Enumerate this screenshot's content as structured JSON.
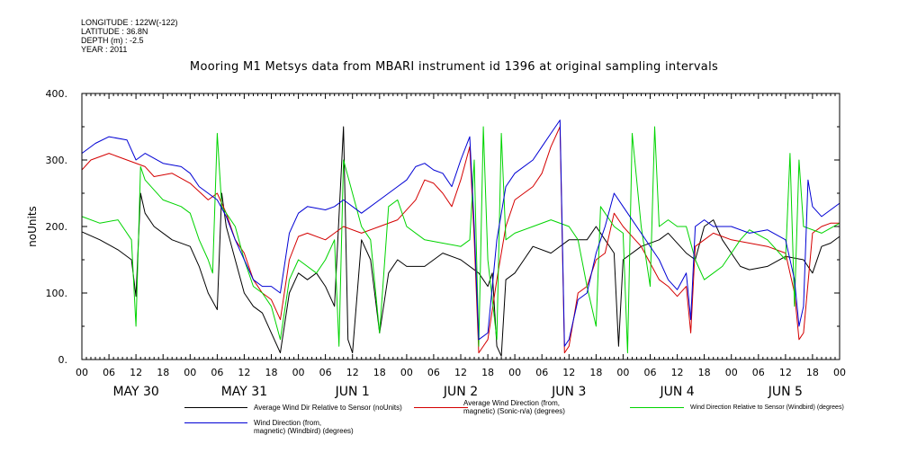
{
  "meta": {
    "longitude": "LONGITUDE : 122W(-122)",
    "latitude": "LATITUDE : 36.8N",
    "depth": "DEPTH (m) : -2.5",
    "year": "YEAR : 2011"
  },
  "chart_data": {
    "type": "line",
    "title": "Mooring M1 Metsys data from MBARI instrument id 1396 at original sampling intervals",
    "ylabel": "noUnits",
    "xlabel": "",
    "ylim": [
      0,
      400
    ],
    "yticks": [
      "0.",
      "100.",
      "200.",
      "300.",
      "400."
    ],
    "xlim_hours": [
      0,
      168
    ],
    "hour_ticks": [
      "00",
      "06",
      "12",
      "18",
      "00",
      "06",
      "12",
      "18",
      "00",
      "06",
      "12",
      "18",
      "00",
      "06",
      "12",
      "18",
      "00",
      "06",
      "12",
      "18",
      "00",
      "06",
      "12",
      "18",
      "00",
      "06",
      "12",
      "18",
      "00"
    ],
    "day_labels": [
      "MAY 30",
      "MAY 31",
      "JUN  1",
      "JUN  2",
      "JUN  3",
      "JUN  4",
      "JUN  5"
    ],
    "grid": false,
    "legend_position": "bottom",
    "series": [
      {
        "name": "Average Wind Dir Relative to Sensor (noUnits)",
        "color": "#000000",
        "points": [
          [
            0,
            192
          ],
          [
            4,
            180
          ],
          [
            8,
            165
          ],
          [
            11,
            150
          ],
          [
            12,
            95
          ],
          [
            13,
            250
          ],
          [
            14,
            220
          ],
          [
            16,
            200
          ],
          [
            20,
            180
          ],
          [
            24,
            170
          ],
          [
            26,
            140
          ],
          [
            28,
            100
          ],
          [
            30,
            75
          ],
          [
            31,
            250
          ],
          [
            32,
            200
          ],
          [
            34,
            150
          ],
          [
            36,
            100
          ],
          [
            38,
            80
          ],
          [
            40,
            70
          ],
          [
            42,
            40
          ],
          [
            44,
            10
          ],
          [
            46,
            100
          ],
          [
            48,
            130
          ],
          [
            50,
            120
          ],
          [
            52,
            130
          ],
          [
            54,
            110
          ],
          [
            56,
            80
          ],
          [
            58,
            350
          ],
          [
            59,
            30
          ],
          [
            60,
            10
          ],
          [
            62,
            180
          ],
          [
            64,
            150
          ],
          [
            66,
            40
          ],
          [
            68,
            130
          ],
          [
            70,
            150
          ],
          [
            72,
            140
          ],
          [
            76,
            140
          ],
          [
            80,
            160
          ],
          [
            84,
            150
          ],
          [
            88,
            130
          ],
          [
            90,
            110
          ],
          [
            91,
            130
          ],
          [
            92,
            20
          ],
          [
            93,
            5
          ],
          [
            94,
            120
          ],
          [
            96,
            130
          ],
          [
            98,
            150
          ],
          [
            100,
            170
          ],
          [
            104,
            160
          ],
          [
            108,
            180
          ],
          [
            112,
            180
          ],
          [
            114,
            200
          ],
          [
            116,
            180
          ],
          [
            118,
            160
          ],
          [
            119,
            20
          ],
          [
            120,
            150
          ],
          [
            124,
            170
          ],
          [
            128,
            180
          ],
          [
            130,
            190
          ],
          [
            134,
            160
          ],
          [
            136,
            150
          ],
          [
            138,
            200
          ],
          [
            140,
            210
          ],
          [
            142,
            180
          ],
          [
            144,
            160
          ],
          [
            146,
            140
          ],
          [
            148,
            135
          ],
          [
            152,
            140
          ],
          [
            156,
            155
          ],
          [
            160,
            150
          ],
          [
            162,
            130
          ],
          [
            164,
            170
          ],
          [
            166,
            175
          ],
          [
            168,
            185
          ]
        ]
      },
      {
        "name": "Average Wind Direction (from,\nmagnetic) (Sonic-n/a) (degrees)",
        "color": "#d40000",
        "points": [
          [
            0,
            285
          ],
          [
            2,
            300
          ],
          [
            6,
            310
          ],
          [
            10,
            300
          ],
          [
            14,
            290
          ],
          [
            16,
            275
          ],
          [
            20,
            280
          ],
          [
            24,
            265
          ],
          [
            28,
            240
          ],
          [
            30,
            250
          ],
          [
            32,
            220
          ],
          [
            34,
            180
          ],
          [
            36,
            160
          ],
          [
            38,
            120
          ],
          [
            40,
            100
          ],
          [
            42,
            90
          ],
          [
            44,
            60
          ],
          [
            46,
            150
          ],
          [
            48,
            185
          ],
          [
            50,
            190
          ],
          [
            54,
            180
          ],
          [
            56,
            190
          ],
          [
            58,
            200
          ],
          [
            62,
            190
          ],
          [
            66,
            200
          ],
          [
            70,
            210
          ],
          [
            74,
            240
          ],
          [
            76,
            270
          ],
          [
            78,
            265
          ],
          [
            80,
            250
          ],
          [
            82,
            230
          ],
          [
            84,
            270
          ],
          [
            86,
            320
          ],
          [
            87,
            180
          ],
          [
            88,
            10
          ],
          [
            90,
            30
          ],
          [
            92,
            120
          ],
          [
            94,
            200
          ],
          [
            96,
            240
          ],
          [
            100,
            260
          ],
          [
            102,
            280
          ],
          [
            104,
            320
          ],
          [
            106,
            350
          ],
          [
            107,
            10
          ],
          [
            108,
            20
          ],
          [
            110,
            100
          ],
          [
            112,
            110
          ],
          [
            114,
            150
          ],
          [
            116,
            160
          ],
          [
            118,
            220
          ],
          [
            120,
            200
          ],
          [
            124,
            170
          ],
          [
            128,
            120
          ],
          [
            130,
            110
          ],
          [
            132,
            95
          ],
          [
            134,
            110
          ],
          [
            135,
            40
          ],
          [
            136,
            170
          ],
          [
            138,
            180
          ],
          [
            140,
            190
          ],
          [
            144,
            180
          ],
          [
            148,
            175
          ],
          [
            152,
            170
          ],
          [
            156,
            160
          ],
          [
            158,
            100
          ],
          [
            159,
            30
          ],
          [
            160,
            40
          ],
          [
            162,
            190
          ],
          [
            164,
            200
          ],
          [
            166,
            205
          ],
          [
            168,
            205
          ]
        ]
      },
      {
        "name": "Wind Direction Relative to Sensor (Windbird) (degrees)",
        "color": "#00d400",
        "points": [
          [
            0,
            215
          ],
          [
            4,
            205
          ],
          [
            8,
            210
          ],
          [
            11,
            180
          ],
          [
            12,
            50
          ],
          [
            13,
            290
          ],
          [
            14,
            270
          ],
          [
            18,
            240
          ],
          [
            22,
            230
          ],
          [
            24,
            220
          ],
          [
            26,
            180
          ],
          [
            28,
            150
          ],
          [
            29,
            130
          ],
          [
            30,
            340
          ],
          [
            31,
            230
          ],
          [
            34,
            200
          ],
          [
            36,
            150
          ],
          [
            38,
            110
          ],
          [
            40,
            100
          ],
          [
            42,
            80
          ],
          [
            44,
            30
          ],
          [
            46,
            120
          ],
          [
            48,
            150
          ],
          [
            52,
            130
          ],
          [
            54,
            150
          ],
          [
            56,
            180
          ],
          [
            57,
            20
          ],
          [
            58,
            300
          ],
          [
            60,
            250
          ],
          [
            62,
            200
          ],
          [
            64,
            180
          ],
          [
            66,
            40
          ],
          [
            68,
            230
          ],
          [
            70,
            240
          ],
          [
            72,
            200
          ],
          [
            76,
            180
          ],
          [
            80,
            175
          ],
          [
            84,
            170
          ],
          [
            86,
            180
          ],
          [
            87,
            300
          ],
          [
            88,
            20
          ],
          [
            89,
            350
          ],
          [
            90,
            150
          ],
          [
            92,
            30
          ],
          [
            93,
            340
          ],
          [
            94,
            180
          ],
          [
            96,
            190
          ],
          [
            100,
            200
          ],
          [
            104,
            210
          ],
          [
            108,
            200
          ],
          [
            110,
            180
          ],
          [
            112,
            110
          ],
          [
            114,
            50
          ],
          [
            115,
            230
          ],
          [
            116,
            220
          ],
          [
            118,
            200
          ],
          [
            120,
            190
          ],
          [
            121,
            10
          ],
          [
            122,
            340
          ],
          [
            124,
            200
          ],
          [
            126,
            110
          ],
          [
            127,
            350
          ],
          [
            128,
            200
          ],
          [
            130,
            210
          ],
          [
            132,
            200
          ],
          [
            134,
            200
          ],
          [
            136,
            150
          ],
          [
            138,
            120
          ],
          [
            140,
            130
          ],
          [
            142,
            140
          ],
          [
            144,
            160
          ],
          [
            146,
            180
          ],
          [
            148,
            195
          ],
          [
            152,
            180
          ],
          [
            156,
            150
          ],
          [
            157,
            310
          ],
          [
            158,
            80
          ],
          [
            159,
            300
          ],
          [
            160,
            200
          ],
          [
            164,
            190
          ],
          [
            168,
            205
          ]
        ]
      },
      {
        "name": "Wind Direction (from,\nmagnetic) (Windbird) (degrees)",
        "color": "#0000d4",
        "points": [
          [
            0,
            310
          ],
          [
            3,
            325
          ],
          [
            6,
            335
          ],
          [
            10,
            330
          ],
          [
            12,
            300
          ],
          [
            14,
            310
          ],
          [
            18,
            295
          ],
          [
            22,
            290
          ],
          [
            24,
            280
          ],
          [
            26,
            260
          ],
          [
            28,
            250
          ],
          [
            30,
            240
          ],
          [
            32,
            215
          ],
          [
            34,
            180
          ],
          [
            36,
            150
          ],
          [
            38,
            120
          ],
          [
            40,
            110
          ],
          [
            42,
            110
          ],
          [
            44,
            100
          ],
          [
            46,
            190
          ],
          [
            48,
            220
          ],
          [
            50,
            230
          ],
          [
            54,
            225
          ],
          [
            56,
            230
          ],
          [
            58,
            240
          ],
          [
            62,
            220
          ],
          [
            66,
            240
          ],
          [
            70,
            260
          ],
          [
            72,
            270
          ],
          [
            74,
            290
          ],
          [
            76,
            295
          ],
          [
            78,
            285
          ],
          [
            80,
            280
          ],
          [
            82,
            260
          ],
          [
            84,
            300
          ],
          [
            86,
            335
          ],
          [
            87,
            200
          ],
          [
            88,
            30
          ],
          [
            90,
            40
          ],
          [
            92,
            180
          ],
          [
            94,
            260
          ],
          [
            96,
            280
          ],
          [
            100,
            300
          ],
          [
            102,
            320
          ],
          [
            104,
            340
          ],
          [
            106,
            360
          ],
          [
            107,
            20
          ],
          [
            108,
            30
          ],
          [
            110,
            90
          ],
          [
            112,
            100
          ],
          [
            114,
            160
          ],
          [
            116,
            200
          ],
          [
            118,
            250
          ],
          [
            120,
            230
          ],
          [
            124,
            190
          ],
          [
            128,
            150
          ],
          [
            130,
            120
          ],
          [
            132,
            105
          ],
          [
            134,
            130
          ],
          [
            135,
            60
          ],
          [
            136,
            200
          ],
          [
            138,
            210
          ],
          [
            140,
            200
          ],
          [
            144,
            200
          ],
          [
            148,
            190
          ],
          [
            152,
            195
          ],
          [
            156,
            180
          ],
          [
            158,
            120
          ],
          [
            159,
            50
          ],
          [
            160,
            80
          ],
          [
            161,
            270
          ],
          [
            162,
            230
          ],
          [
            164,
            215
          ],
          [
            166,
            225
          ],
          [
            168,
            235
          ]
        ]
      }
    ]
  }
}
